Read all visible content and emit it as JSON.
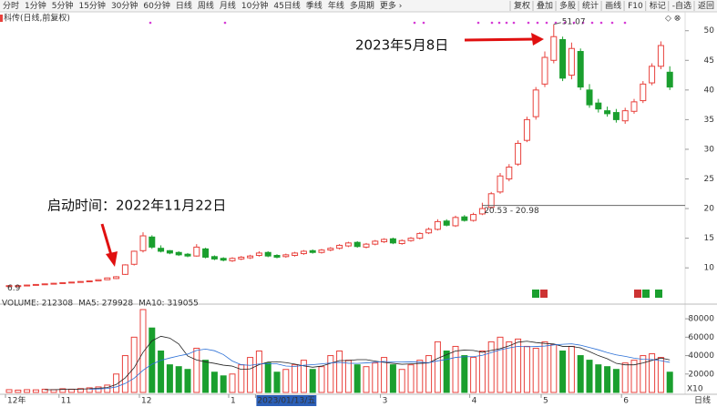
{
  "toolbar": {
    "left": [
      "分时",
      "1分钟",
      "5分钟",
      "15分钟",
      "30分钟",
      "60分钟",
      "日线",
      "周线",
      "月线",
      "10分钟",
      "45日线",
      "季线",
      "年线",
      "多周期",
      "更多 ›"
    ],
    "active": "日线",
    "right": [
      "复权",
      "叠加",
      "多股",
      "统计",
      "画线",
      "F10",
      "标记",
      "-自选",
      "返回"
    ]
  },
  "chart_data": {
    "type": "candlestick",
    "title": "科传(日线,前复权)",
    "up_color": "#e8413c",
    "down_color": "#1a9f2e",
    "candles": {
      "open": [
        6.98,
        6.95,
        7.0,
        7.15,
        7.25,
        7.3,
        7.45,
        7.55,
        7.6,
        7.75,
        7.8,
        8.0,
        8.2,
        8.9,
        10.6,
        12.9,
        15.2,
        13.3,
        12.9,
        12.6,
        12.3,
        12.0,
        13.2,
        11.9,
        11.6,
        11.2,
        11.5,
        11.7,
        12.1,
        12.6,
        12.1,
        11.9,
        12.1,
        12.4,
        12.9,
        12.6,
        13.0,
        13.3,
        13.7,
        14.3,
        13.5,
        14.0,
        14.4,
        14.9,
        14.1,
        14.6,
        15.0,
        15.9,
        16.5,
        17.9,
        17.1,
        18.6,
        18.0,
        19.1,
        20.2,
        22.8,
        25.0,
        27.5,
        31.5,
        35.5,
        41.0,
        45.0,
        48.5,
        42.5,
        46.5,
        40.0,
        37.8,
        36.5,
        36.2,
        34.8,
        36.4,
        38.2,
        41.2,
        44.0,
        43.0
      ],
      "high": [
        7.05,
        7.05,
        7.15,
        7.25,
        7.35,
        7.45,
        7.55,
        7.65,
        7.75,
        7.85,
        8.05,
        8.35,
        8.6,
        10.6,
        12.9,
        16.0,
        15.5,
        13.8,
        13.0,
        12.8,
        12.5,
        14.0,
        13.4,
        12.1,
        11.8,
        11.8,
        12.0,
        12.2,
        12.8,
        12.8,
        12.3,
        12.4,
        12.7,
        13.0,
        13.1,
        13.2,
        13.5,
        14.0,
        14.4,
        14.5,
        14.2,
        14.7,
        15.0,
        15.1,
        14.8,
        15.2,
        16.0,
        16.8,
        18.2,
        18.2,
        18.8,
        18.9,
        19.3,
        20.98,
        22.8,
        26.0,
        27.5,
        31.5,
        35.5,
        40.5,
        46.5,
        51.07,
        49.0,
        48.0,
        47.0,
        41.0,
        38.5,
        37.2,
        36.8,
        37.0,
        38.5,
        41.5,
        44.5,
        48.2,
        44.0
      ],
      "low": [
        6.95,
        6.9,
        6.95,
        7.1,
        7.2,
        7.25,
        7.4,
        7.5,
        7.55,
        7.7,
        7.75,
        7.95,
        8.1,
        8.8,
        10.4,
        12.6,
        13.2,
        12.6,
        12.3,
        12.0,
        11.8,
        11.9,
        11.6,
        11.3,
        11.1,
        11.0,
        11.3,
        11.5,
        11.9,
        11.8,
        11.6,
        11.7,
        11.9,
        12.2,
        12.4,
        12.4,
        12.8,
        13.1,
        13.5,
        13.4,
        13.3,
        13.8,
        14.2,
        14.0,
        13.9,
        14.4,
        14.8,
        15.7,
        16.3,
        17.0,
        16.9,
        17.8,
        17.8,
        18.9,
        20.0,
        22.5,
        24.6,
        27.2,
        31.2,
        35.0,
        40.5,
        44.5,
        41.5,
        41.8,
        40.0,
        37.0,
        36.2,
        35.5,
        34.5,
        34.3,
        36.0,
        37.8,
        40.8,
        43.5,
        40.0
      ],
      "close": [
        7.0,
        7.0,
        7.1,
        7.2,
        7.3,
        7.4,
        7.5,
        7.6,
        7.7,
        7.8,
        8.0,
        8.3,
        8.5,
        10.5,
        12.8,
        15.4,
        13.5,
        12.8,
        12.5,
        12.2,
        12.0,
        13.5,
        11.8,
        11.5,
        11.3,
        11.6,
        11.8,
        12.0,
        12.5,
        12.0,
        11.8,
        12.2,
        12.5,
        12.8,
        12.6,
        13.0,
        13.3,
        13.8,
        14.2,
        13.6,
        14.0,
        14.5,
        14.8,
        14.2,
        14.6,
        15.0,
        15.8,
        16.5,
        17.8,
        17.2,
        18.5,
        18.0,
        19.0,
        20.0,
        22.5,
        25.5,
        27.0,
        31.0,
        35.0,
        40.0,
        45.5,
        49.0,
        42.0,
        47.0,
        40.5,
        37.5,
        36.8,
        36.0,
        35.0,
        36.5,
        38.0,
        41.0,
        44.0,
        47.5,
        40.5
      ]
    },
    "volume": [
      3000,
      2500,
      3000,
      2800,
      3500,
      3000,
      4000,
      3500,
      4200,
      5000,
      6000,
      8000,
      20000,
      40000,
      60000,
      90000,
      70000,
      45000,
      30000,
      28000,
      25000,
      48000,
      35000,
      22000,
      18000,
      20000,
      30000,
      38000,
      45000,
      32000,
      22000,
      25000,
      30000,
      35000,
      25000,
      28000,
      40000,
      45000,
      35000,
      30000,
      28000,
      32000,
      38000,
      30000,
      25000,
      30000,
      35000,
      40000,
      55000,
      45000,
      50000,
      40000,
      38000,
      45000,
      55000,
      60000,
      55000,
      58000,
      50000,
      48000,
      55000,
      52000,
      45000,
      50000,
      40000,
      35000,
      30000,
      28000,
      25000,
      32000,
      35000,
      40000,
      42000,
      38000,
      22000
    ],
    "ylim": [
      4.5,
      51.8
    ],
    "yticks": [
      10,
      15,
      20,
      25,
      30,
      35,
      40,
      45,
      50
    ],
    "y2lim": [
      0,
      90000
    ],
    "y2ticks": [
      20000,
      40000,
      60000,
      80000
    ],
    "x_labels": [
      {
        "index": 0,
        "label": "12年"
      },
      {
        "index": 6,
        "label": "11"
      },
      {
        "index": 15,
        "label": "12"
      },
      {
        "index": 25,
        "label": "1"
      },
      {
        "index": 28,
        "label": "2023/01/13/五"
      },
      {
        "index": 42,
        "label": "3"
      },
      {
        "index": 52,
        "label": "4"
      },
      {
        "index": 60,
        "label": "5"
      },
      {
        "index": 69,
        "label": "6"
      }
    ],
    "period_label": "日线",
    "range_annotation": {
      "text": "20.53 - 20.98",
      "value": 20.53
    },
    "volume_legend": [
      {
        "label": "VOLUME:",
        "value": 212308
      },
      {
        "label": "MA5:",
        "value": 279928
      },
      {
        "label": "MA10:",
        "value": 319055
      }
    ],
    "scale_label": "X10",
    "annotations": [
      "2023年5月8日",
      "启动时间：2022年11月22日"
    ]
  }
}
